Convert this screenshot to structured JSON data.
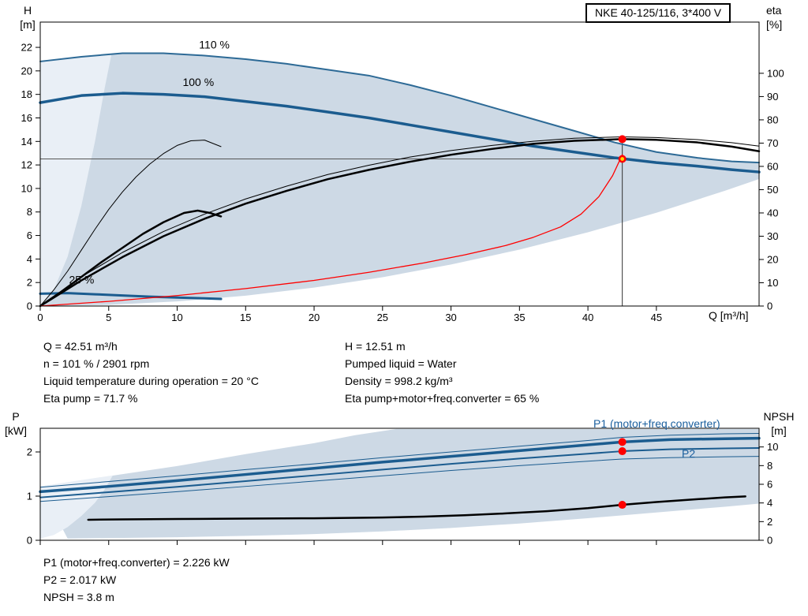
{
  "header": {
    "title_box": "NKE 40-125/116, 3*400 V"
  },
  "info_panel": {
    "left": [
      "Q = 42.51 m³/h",
      "n = 101 % / 2901 rpm",
      "Liquid temperature during operation = 20 °C",
      "Eta pump = 71.7 %"
    ],
    "right": [
      "H = 12.51 m",
      "Pumped liquid = Water",
      "Density = 998.2 kg/m³",
      "Eta pump+motor+freq.converter = 65 %"
    ]
  },
  "footer_panel": [
    "P1 (motor+freq.converter) = 2.226 kW",
    "P2 = 2.017 kW",
    "NPSH = 3.8 m"
  ],
  "colors": {
    "curve_blue": "#1b5c8f",
    "band_fill": "#cdd9e5",
    "band_pale": "#e9eff6",
    "duty_red": "#ff0000",
    "duty_yellow": "#ffd700",
    "label_blue": "#1a5f9e"
  },
  "chart_data": [
    {
      "type": "line",
      "title": "NKE 40-125/116, 3*400 V",
      "x_axis": {
        "label": "Q [m³/h]",
        "min": 0,
        "max": 52.5,
        "ticks": [
          0,
          5,
          10,
          15,
          20,
          25,
          30,
          35,
          40,
          45
        ],
        "show_labels": true
      },
      "y_left": {
        "label": "H",
        "unit": "[m]",
        "min": 0,
        "max": 24.15,
        "ticks": [
          0,
          2,
          4,
          6,
          8,
          10,
          12,
          14,
          16,
          18,
          20,
          22
        ]
      },
      "y_right": {
        "label": "eta",
        "unit": "[%]",
        "min": 0,
        "max": 122,
        "ticks": [
          0,
          10,
          20,
          30,
          40,
          50,
          60,
          70,
          80,
          90,
          100
        ]
      },
      "bands": [
        {
          "name": "operating-envelope",
          "fill": "#cdd9e5",
          "axis": "left",
          "top": {
            "q": [
              0,
              3,
              6,
              9,
              12,
              15,
              18,
              21,
              24,
              27,
              30,
              33,
              36,
              39,
              42,
              45,
              48,
              50.5,
              52.5
            ],
            "v": [
              20.8,
              21.2,
              21.5,
              21.5,
              21.3,
              21.0,
              20.6,
              20.1,
              19.6,
              18.8,
              17.9,
              16.9,
              15.9,
              14.9,
              13.9,
              13.1,
              12.6,
              12.3,
              12.2
            ]
          },
          "bottom": {
            "q": [
              0,
              5,
              10,
              15,
              20,
              25,
              30,
              35,
              40,
              45,
              50,
              52.5
            ],
            "v": [
              0,
              0.1,
              0.39,
              0.88,
              1.57,
              2.45,
              3.53,
              4.8,
              6.27,
              7.93,
              9.8,
              10.8
            ]
          }
        },
        {
          "name": "low-speed-pale-region",
          "fill": "#e9eff6",
          "axis": "left",
          "points": {
            "q": [
              0,
              1,
              2,
              3,
              4,
              4.7,
              5.2,
              3,
              0
            ],
            "v": [
              0,
              1.4,
              4.2,
              8.5,
              14,
              18.5,
              21.4,
              21.2,
              20.8
            ]
          }
        }
      ],
      "series": [
        {
          "name": "curve-110pct",
          "axis": "left",
          "color": "#2d6a96",
          "width": 2,
          "q": [
            0,
            3,
            6,
            9,
            12,
            15,
            18,
            21,
            24,
            27,
            30,
            33,
            36,
            39,
            42,
            45,
            48,
            50.5,
            52.5
          ],
          "v": [
            20.8,
            21.2,
            21.5,
            21.5,
            21.3,
            21.0,
            20.6,
            20.1,
            19.6,
            18.8,
            17.9,
            16.9,
            15.9,
            14.9,
            13.9,
            13.1,
            12.6,
            12.3,
            12.2
          ]
        },
        {
          "name": "curve-100pct",
          "axis": "left",
          "color": "#1b5c8f",
          "width": 3.5,
          "q": [
            0,
            3,
            6,
            9,
            12,
            15,
            18,
            21,
            24,
            27,
            30,
            33,
            36,
            39,
            42,
            45,
            48,
            50.5,
            52.5
          ],
          "v": [
            17.3,
            17.9,
            18.1,
            18.0,
            17.8,
            17.4,
            17.0,
            16.5,
            16.0,
            15.4,
            14.8,
            14.2,
            13.6,
            13.1,
            12.6,
            12.2,
            11.9,
            11.6,
            11.4
          ]
        },
        {
          "name": "curve-25pct",
          "axis": "left",
          "color": "#1b5c8f",
          "width": 3,
          "q": [
            0,
            2,
            4,
            6,
            8,
            10,
            12,
            13.2
          ],
          "v": [
            1.05,
            1.1,
            1.0,
            0.9,
            0.8,
            0.72,
            0.65,
            0.6
          ]
        },
        {
          "name": "eta-pump-thin",
          "axis": "right",
          "color": "#000000",
          "width": 1,
          "q": [
            0,
            3,
            6,
            9,
            12,
            15,
            18,
            21,
            24,
            27,
            30,
            33,
            36,
            39,
            42.5,
            45,
            48,
            50.5,
            52.5
          ],
          "v": [
            0,
            12.5,
            23,
            32,
            39.5,
            46,
            51.5,
            56.5,
            60.5,
            64,
            66.8,
            69,
            70.8,
            72.1,
            72.7,
            72.4,
            71.5,
            70.2,
            68.7
          ]
        },
        {
          "name": "eta-pump-thick",
          "axis": "right",
          "color": "#000000",
          "width": 2.5,
          "q": [
            0,
            3,
            6,
            9,
            12,
            15,
            18,
            21,
            24,
            27,
            30,
            33,
            36,
            39,
            42.5,
            45,
            48,
            50.5,
            52.5
          ],
          "v": [
            0,
            11,
            21,
            30,
            37.5,
            44,
            49.5,
            54.5,
            58.5,
            62,
            65,
            67.5,
            69.7,
            71,
            71.7,
            71.4,
            70.3,
            68.5,
            66.5
          ]
        },
        {
          "name": "eta-25pct-thin",
          "axis": "right",
          "color": "#000000",
          "width": 1,
          "q": [
            0,
            1,
            2,
            3,
            4,
            5,
            6,
            7,
            8,
            9,
            10,
            11,
            12,
            13.2
          ],
          "v": [
            0,
            7,
            15,
            24,
            33,
            41.5,
            49,
            55.5,
            61,
            65.5,
            69,
            71,
            71.3,
            68.5
          ]
        },
        {
          "name": "eta-25pct-thick",
          "axis": "right",
          "color": "#000000",
          "width": 2.5,
          "q": [
            0,
            1.5,
            3,
            4.5,
            6,
            7.5,
            9,
            10.5,
            11.5,
            12.4,
            13.2
          ],
          "v": [
            0,
            6,
            12.5,
            19,
            25,
            31,
            36,
            40,
            41,
            40,
            38.5
          ]
        },
        {
          "name": "eta-total-red-curve",
          "axis": "right",
          "color": "#ff0000",
          "width": 1.3,
          "q": [
            0,
            5,
            10,
            15,
            20,
            24,
            28,
            31,
            34,
            36,
            38,
            39.5,
            40.8,
            41.8,
            42.51
          ],
          "v": [
            0,
            2,
            4.5,
            7.5,
            11,
            14.5,
            18.5,
            22,
            26,
            29.5,
            34,
            39.5,
            47,
            56,
            65
          ]
        }
      ],
      "curve_labels": [
        {
          "text": "110 %",
          "q": 11.6,
          "v": 21.9
        },
        {
          "text": "100 %",
          "q": 10.4,
          "v": 18.7
        },
        {
          "text": "25 %",
          "q": 2.1,
          "v": 1.9
        }
      ],
      "duty": {
        "q": 42.51,
        "h": 12.51,
        "eta": 71.7
      }
    },
    {
      "type": "line",
      "x_axis": {
        "label": "",
        "min": 0,
        "max": 52.5,
        "ticks": [
          0,
          5,
          10,
          15,
          20,
          25,
          30,
          35,
          40,
          45
        ],
        "show_labels": false
      },
      "y_left": {
        "label": "P",
        "unit": "[kW]",
        "min": 0,
        "max": 2.536,
        "ticks": [
          0,
          1,
          2
        ]
      },
      "y_right": {
        "label": "NPSH",
        "unit": "[m]",
        "min": 0,
        "max": 12,
        "ticks": [
          0,
          2,
          4,
          6,
          8,
          10
        ]
      },
      "bands": [
        {
          "name": "power-envelope",
          "fill": "#cdd9e5",
          "axis": "left",
          "top": {
            "q": [
              0,
              5,
              10,
              15,
              20,
              23,
              26,
              30,
              35,
              40,
              45,
              50,
              52.5
            ],
            "v": [
              1.22,
              1.45,
              1.68,
              1.95,
              2.2,
              2.38,
              2.52,
              2.52,
              2.52,
              2.52,
              2.52,
              2.52,
              2.52
            ]
          },
          "bottom": {
            "q": [
              2,
              5,
              10,
              15,
              20,
              25,
              30,
              35,
              40,
              45,
              50,
              52.5
            ],
            "v": [
              0.04,
              0.05,
              0.07,
              0.1,
              0.14,
              0.2,
              0.28,
              0.38,
              0.5,
              0.63,
              0.76,
              0.83
            ]
          }
        },
        {
          "name": "power-pale-region",
          "fill": "#e9eff6",
          "axis": "left",
          "points": {
            "q": [
              0,
              1,
              2,
              3,
              4,
              4.7,
              5.3,
              2.5,
              0
            ],
            "v": [
              0.04,
              0.12,
              0.3,
              0.55,
              0.85,
              1.15,
              1.47,
              1.34,
              1.22
            ]
          }
        }
      ],
      "series": [
        {
          "name": "p1-upper-tolerance",
          "axis": "left",
          "color": "#1b5c8f",
          "width": 1,
          "q": [
            0,
            5,
            10,
            15,
            20,
            25,
            30,
            35,
            40,
            42.5,
            46,
            50,
            52.5
          ],
          "v": [
            1.2,
            1.33,
            1.46,
            1.6,
            1.73,
            1.87,
            2.0,
            2.13,
            2.26,
            2.33,
            2.38,
            2.41,
            2.42
          ]
        },
        {
          "name": "p1-curve",
          "axis": "left",
          "color": "#1b5c8f",
          "width": 3.5,
          "q": [
            0,
            5,
            10,
            15,
            20,
            25,
            30,
            35,
            40,
            42.5,
            46,
            50,
            52.5
          ],
          "v": [
            1.1,
            1.22,
            1.35,
            1.49,
            1.63,
            1.77,
            1.9,
            2.03,
            2.16,
            2.226,
            2.28,
            2.3,
            2.31
          ]
        },
        {
          "name": "p2-curve",
          "axis": "left",
          "color": "#1b5c8f",
          "width": 2,
          "q": [
            0,
            5,
            10,
            15,
            20,
            25,
            30,
            35,
            40,
            42.5,
            46,
            50,
            52.5
          ],
          "v": [
            0.97,
            1.09,
            1.21,
            1.34,
            1.47,
            1.6,
            1.73,
            1.85,
            1.96,
            2.017,
            2.06,
            2.08,
            2.09
          ]
        },
        {
          "name": "p2-lower-tolerance",
          "axis": "left",
          "color": "#1b5c8f",
          "width": 1,
          "q": [
            0,
            5,
            10,
            15,
            20,
            25,
            30,
            35,
            40,
            42.5,
            46,
            50,
            52.5
          ],
          "v": [
            0.88,
            0.99,
            1.1,
            1.22,
            1.34,
            1.46,
            1.58,
            1.69,
            1.79,
            1.84,
            1.87,
            1.89,
            1.9
          ]
        },
        {
          "name": "npsh-curve",
          "axis": "right",
          "color": "#000000",
          "width": 2.5,
          "q": [
            3.5,
            6,
            10,
            15,
            20,
            25,
            28,
            31,
            34,
            37,
            40,
            42.5,
            45,
            48,
            50,
            51.5
          ],
          "v": [
            2.2,
            2.24,
            2.28,
            2.32,
            2.36,
            2.44,
            2.54,
            2.68,
            2.88,
            3.12,
            3.44,
            3.8,
            4.1,
            4.4,
            4.6,
            4.7
          ]
        }
      ],
      "annotations": [
        {
          "text": "P1 (motor+freq.converter)"
        },
        {
          "text": "P2"
        }
      ],
      "duty_points": [
        {
          "q": 42.51,
          "axis": "left",
          "v": 2.226
        },
        {
          "q": 42.51,
          "axis": "left",
          "v": 2.017
        },
        {
          "q": 42.51,
          "axis": "right",
          "v": 3.8
        }
      ]
    }
  ]
}
